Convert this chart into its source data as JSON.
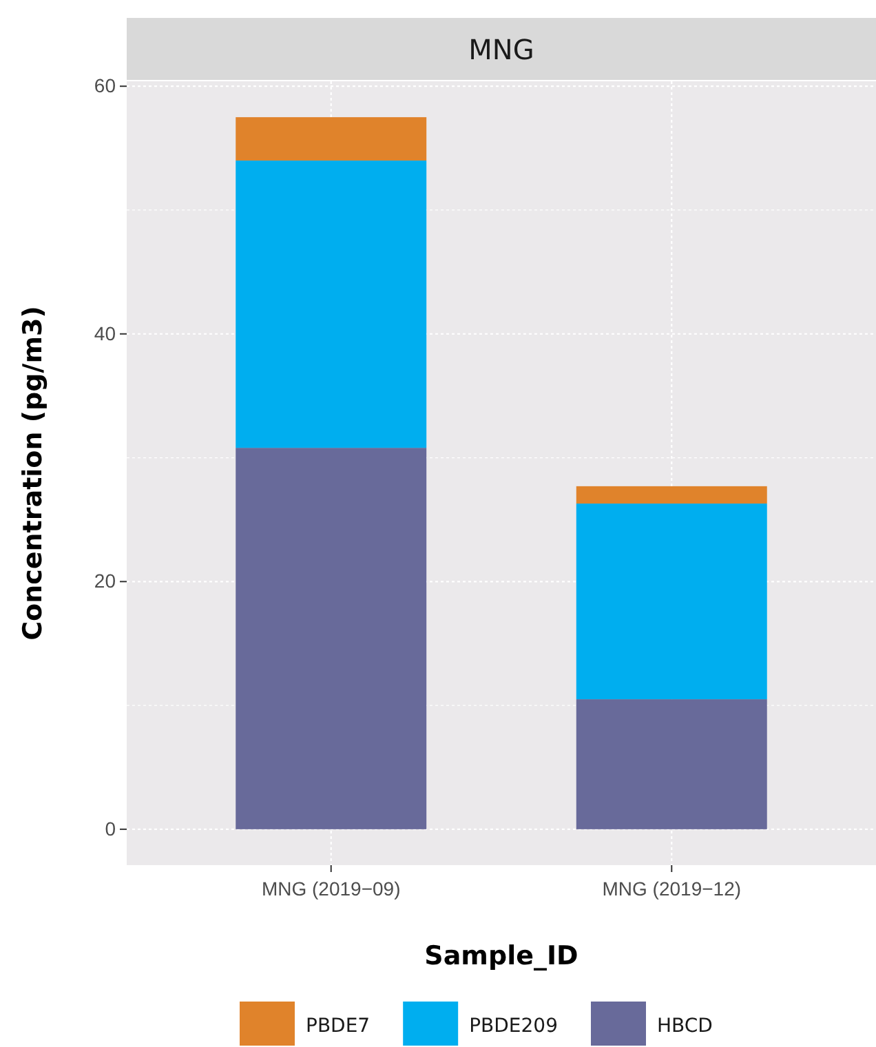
{
  "chart_data": {
    "type": "bar",
    "title": "MNG",
    "xlabel": "Sample_ID",
    "ylabel": "Concentration (pg/m3)",
    "categories": [
      "MNG (2019−09)",
      "MNG (2019−12)"
    ],
    "stacked": true,
    "series": [
      {
        "name": "HBCD",
        "color": "#686a9a",
        "values": [
          30.8,
          10.5
        ]
      },
      {
        "name": "PBDE209",
        "color": "#00aeef",
        "values": [
          23.2,
          15.8
        ]
      },
      {
        "name": "PBDE7",
        "color": "#e0832b",
        "values": [
          3.5,
          1.4
        ]
      }
    ],
    "ylim": [
      -2.9,
      60.4
    ],
    "yticks": [
      0,
      20,
      40,
      60
    ],
    "grid": true,
    "legend": "bottom"
  }
}
